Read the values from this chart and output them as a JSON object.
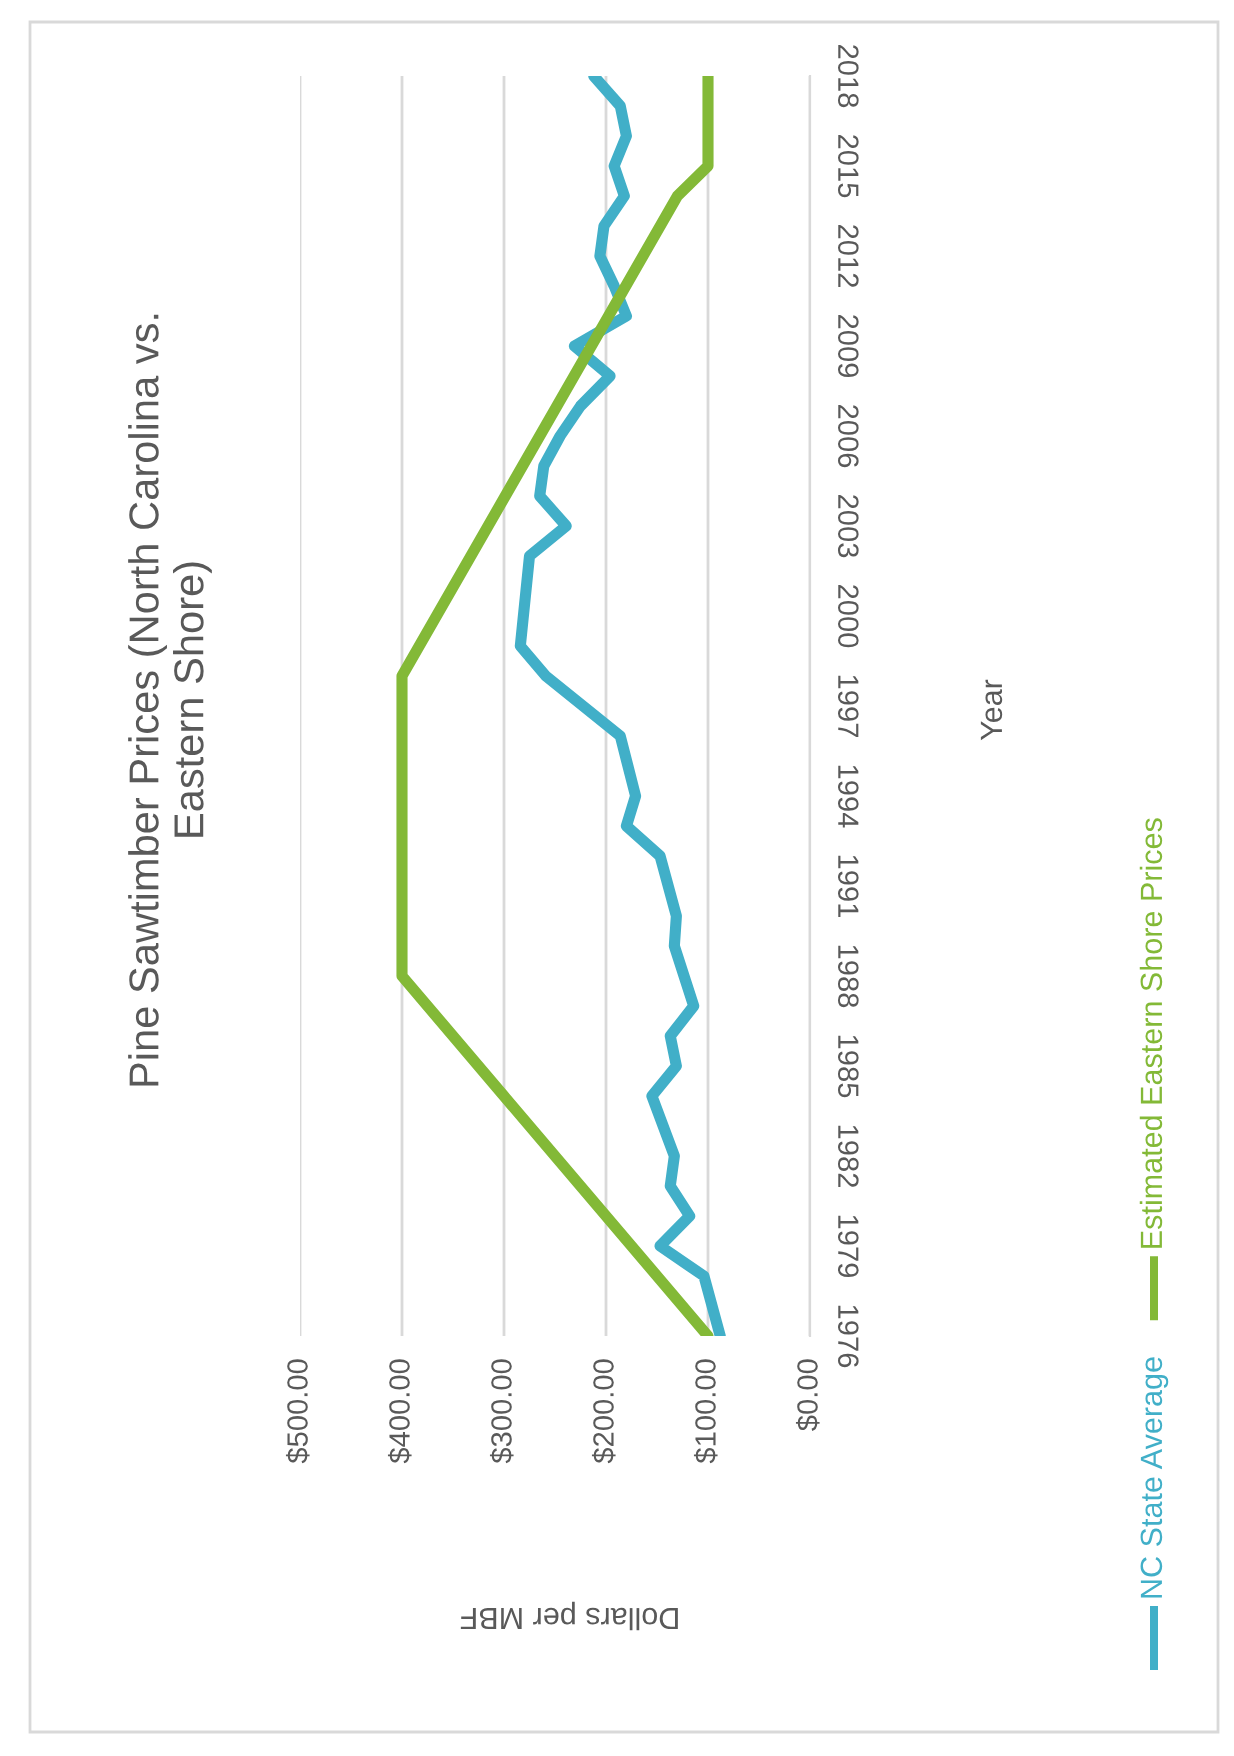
{
  "chart_data": {
    "type": "line",
    "title": "Pine Sawtimber Prices (North Carolina vs. Eastern Shore)",
    "xlabel": "Dollars per MBF",
    "ylabel": "Year",
    "xlim": [
      500,
      0
    ],
    "xticks": [
      {
        "value": 500,
        "label": "$500.00"
      },
      {
        "value": 400,
        "label": "$400.00"
      },
      {
        "value": 300,
        "label": "$300.00"
      },
      {
        "value": 200,
        "label": "$200.00"
      },
      {
        "value": 100,
        "label": "$100.00"
      },
      {
        "value": 0,
        "label": "$0.00"
      }
    ],
    "ylim": [
      1976,
      2018
    ],
    "yticks": [
      1976,
      1979,
      1982,
      1985,
      1988,
      1991,
      1994,
      1997,
      2000,
      2003,
      2006,
      2009,
      2012,
      2015,
      2018
    ],
    "grid": "x",
    "legend": "right",
    "marker": "none",
    "line_style": "solid",
    "series": [
      {
        "name": "NC State Average",
        "color": "#41afc8",
        "x": [
          88,
          104,
          147,
          118,
          137,
          133,
          155,
          131,
          137,
          114,
          133,
          131,
          147,
          180,
          171,
          186,
          259,
          284,
          275,
          239,
          265,
          261,
          245,
          225,
          196,
          231,
          180,
          192,
          206,
          202,
          182,
          192,
          180,
          186,
          212
        ],
        "values": [
          1976,
          1978,
          1979,
          1980,
          1981,
          1982,
          1984,
          1985,
          1986,
          1987,
          1989,
          1990,
          1992,
          1993,
          1994,
          1996,
          1998,
          1999,
          2002,
          2003,
          2004,
          2005,
          2006,
          2007,
          2008,
          2009,
          2010,
          2011,
          2012,
          2013,
          2014,
          2015,
          2016,
          2017,
          2018
        ]
      },
      {
        "name": "Estimated Eastern Shore Prices",
        "color": "#83b937",
        "x": [
          100,
          400,
          400,
          130,
          100,
          100
        ],
        "values": [
          1976,
          1988,
          1998,
          2014,
          2015,
          2018
        ]
      }
    ]
  }
}
